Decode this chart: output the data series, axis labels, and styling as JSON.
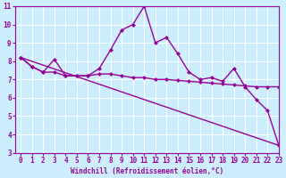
{
  "xlabel": "Windchill (Refroidissement éolien,°C)",
  "x_values": [
    0,
    1,
    2,
    3,
    4,
    5,
    6,
    7,
    8,
    9,
    10,
    11,
    12,
    13,
    14,
    15,
    16,
    17,
    18,
    19,
    20,
    21,
    22,
    23
  ],
  "line_jagged": [
    8.2,
    7.7,
    7.4,
    8.1,
    7.2,
    7.2,
    7.2,
    7.6,
    8.6,
    9.7,
    10.0,
    11.0,
    9.0,
    9.3,
    8.4,
    7.4,
    7.0,
    7.1,
    6.9,
    7.6,
    6.6,
    5.9,
    5.3,
    3.4
  ],
  "line_flat": [
    8.2,
    7.7,
    7.4,
    7.4,
    7.2,
    7.2,
    7.2,
    7.3,
    7.3,
    7.2,
    7.1,
    7.1,
    7.0,
    7.0,
    6.95,
    6.9,
    6.85,
    6.8,
    6.75,
    6.7,
    6.65,
    6.6,
    6.6,
    6.6
  ],
  "line_decline_x": [
    0,
    23
  ],
  "line_decline_y": [
    8.2,
    3.4
  ],
  "ylim": [
    3,
    11
  ],
  "xlim": [
    -0.5,
    23
  ],
  "yticks": [
    3,
    4,
    5,
    6,
    7,
    8,
    9,
    10,
    11
  ],
  "color": "#990099",
  "bg_color": "#cceeff",
  "grid_color": "#ffffff",
  "line_width": 1.0,
  "marker": "D",
  "marker_size": 2.5,
  "axis_fontsize": 5.5
}
